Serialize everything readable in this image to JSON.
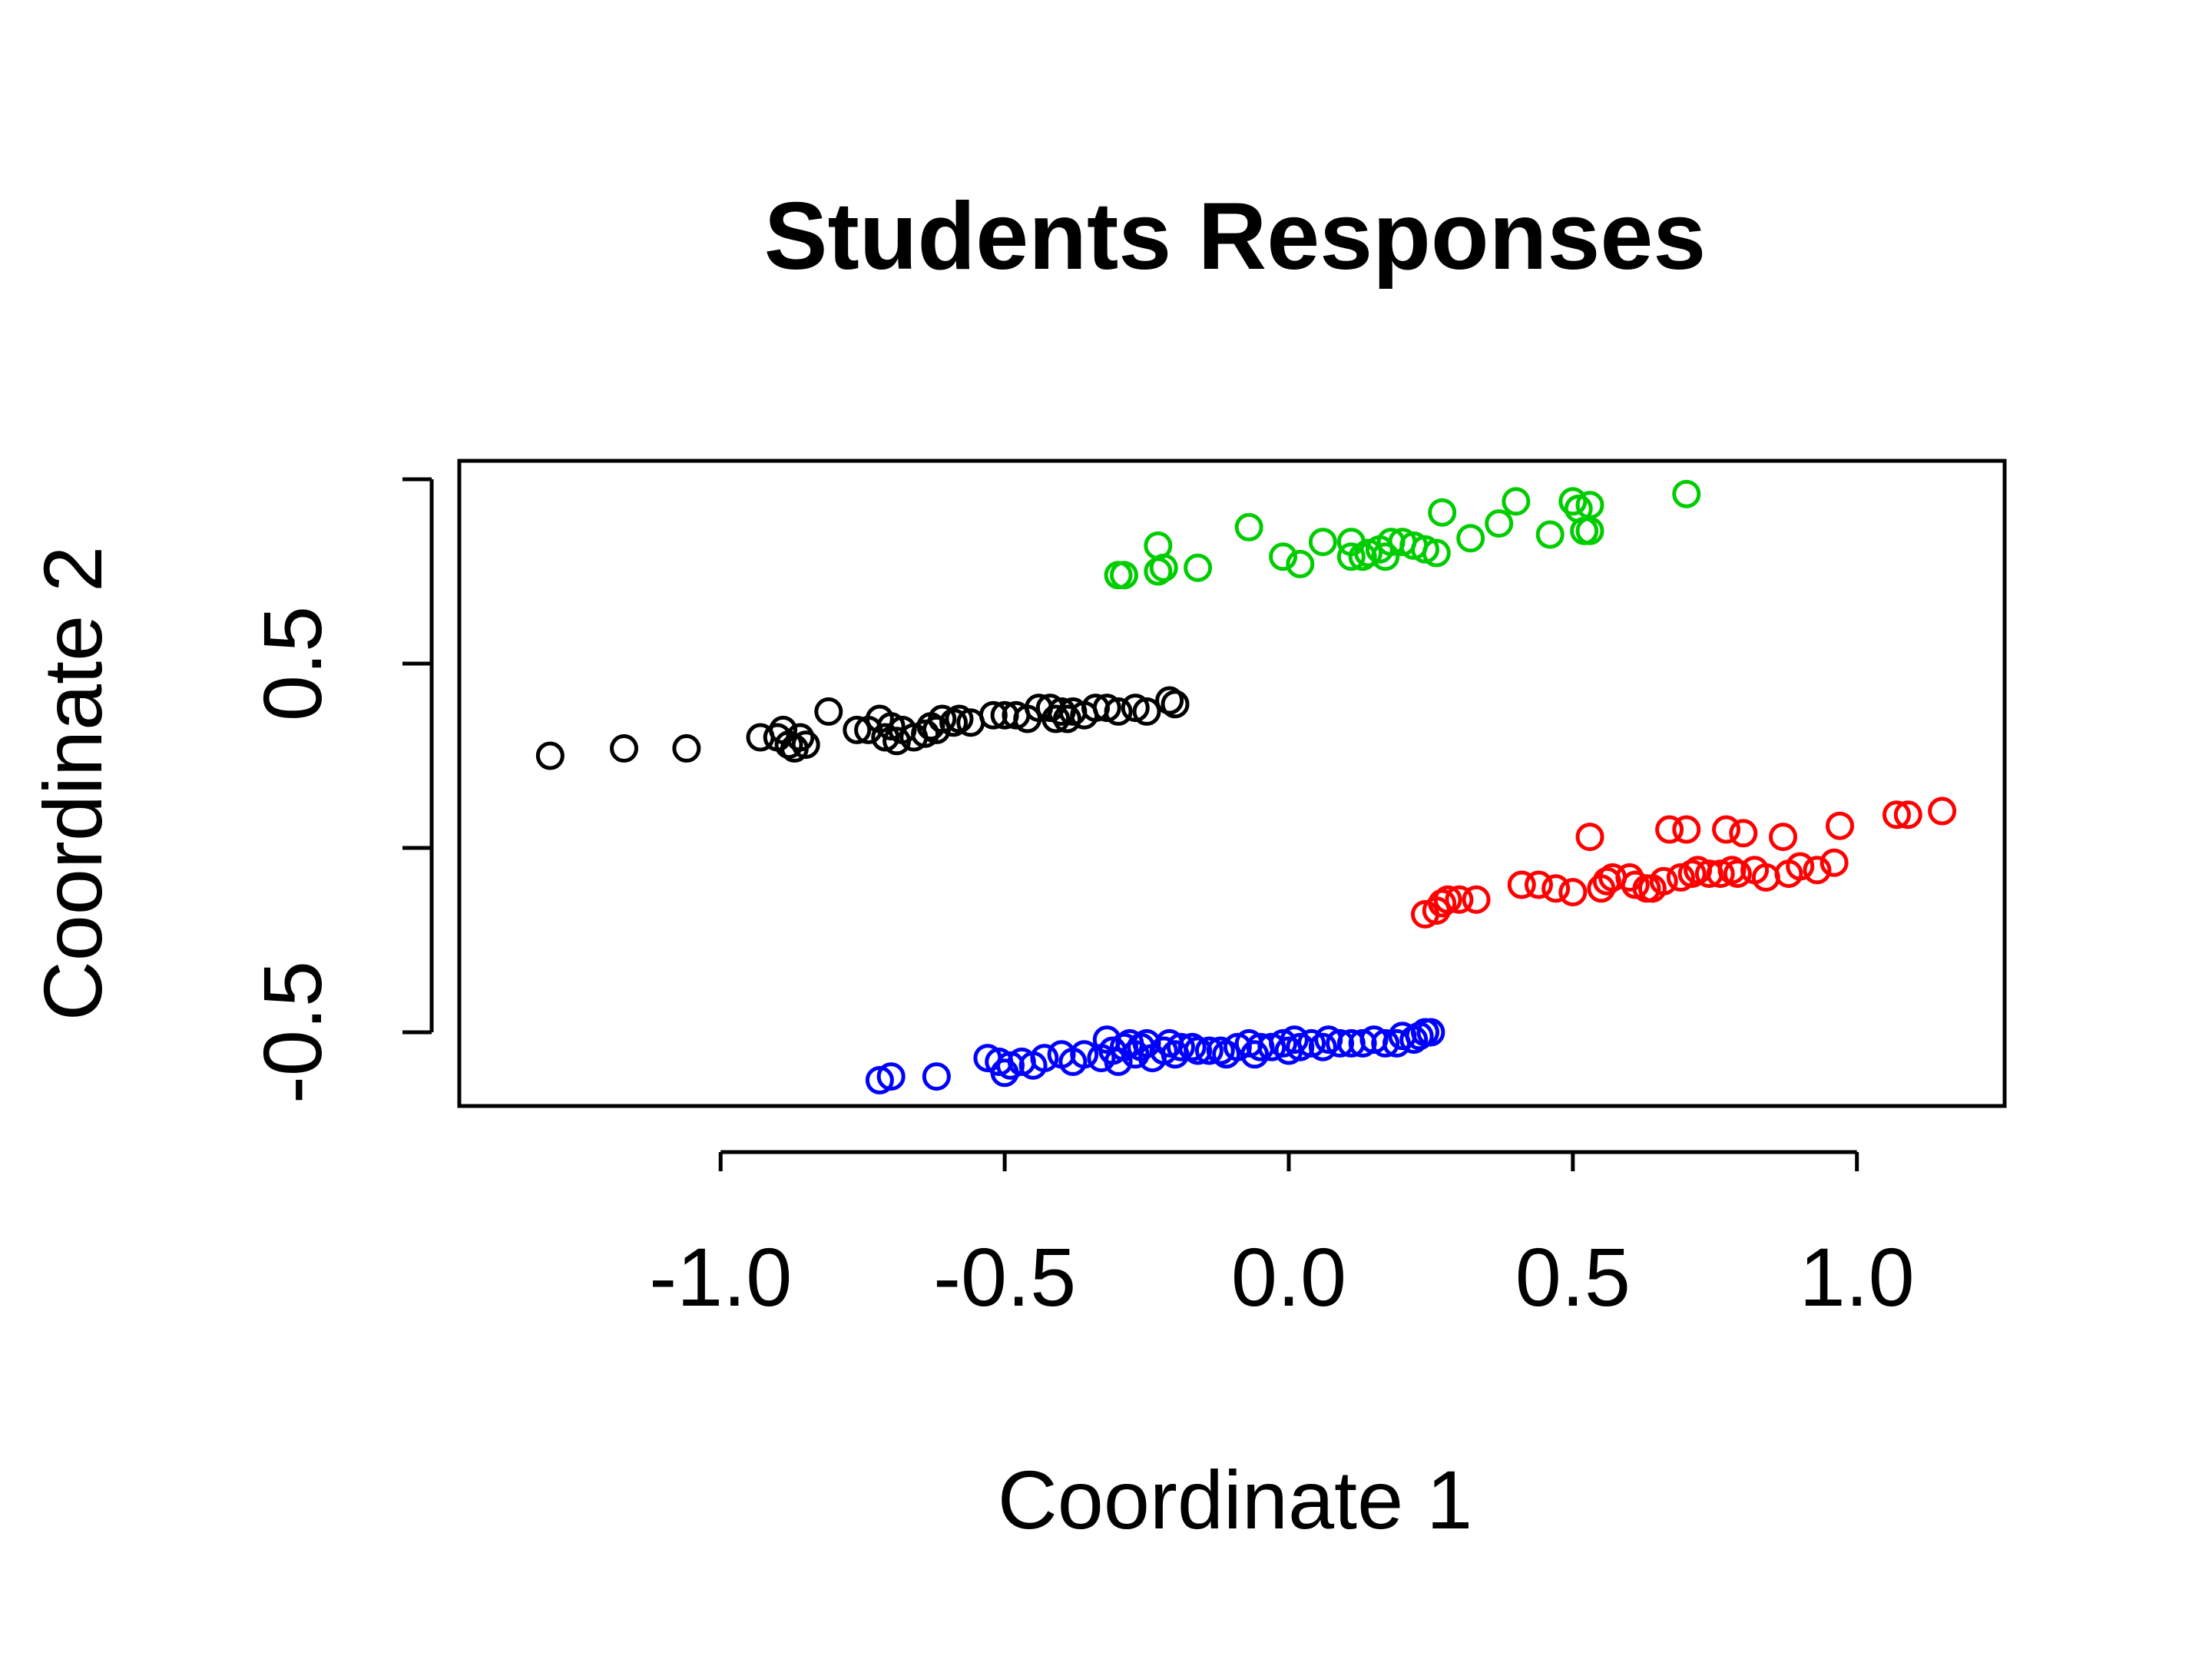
{
  "chart_data": {
    "type": "scatter",
    "title": "Students Responses",
    "xlabel": "Coordinate 1",
    "ylabel": "Coordinate 2",
    "xlim": [
      -1.46,
      1.26
    ],
    "ylim": [
      -0.7,
      1.05
    ],
    "xticks": [
      -1.0,
      -0.5,
      0.0,
      0.5,
      1.0
    ],
    "xtick_labels": [
      "-1.0",
      "-0.5",
      "0.0",
      "0.5",
      "1.0"
    ],
    "yticks": [
      -0.5,
      0.0,
      0.5,
      1.0
    ],
    "ytick_labels": [
      "-0.5",
      "",
      "0.5",
      ""
    ],
    "grid": false,
    "legend": "none",
    "marker": "open-circle",
    "series": [
      {
        "color": "#000000",
        "points": [
          [
            -1.3,
            0.25
          ],
          [
            -1.17,
            0.27
          ],
          [
            -1.06,
            0.27
          ],
          [
            -0.93,
            0.3
          ],
          [
            -0.9,
            0.3
          ],
          [
            -0.89,
            0.32
          ],
          [
            -0.88,
            0.28
          ],
          [
            -0.87,
            0.27
          ],
          [
            -0.86,
            0.3
          ],
          [
            -0.85,
            0.28
          ],
          [
            -0.81,
            0.37
          ],
          [
            -0.76,
            0.32
          ],
          [
            -0.74,
            0.32
          ],
          [
            -0.72,
            0.35
          ],
          [
            -0.71,
            0.3
          ],
          [
            -0.7,
            0.33
          ],
          [
            -0.69,
            0.29
          ],
          [
            -0.68,
            0.32
          ],
          [
            -0.66,
            0.3
          ],
          [
            -0.64,
            0.31
          ],
          [
            -0.63,
            0.33
          ],
          [
            -0.62,
            0.32
          ],
          [
            -0.61,
            0.35
          ],
          [
            -0.59,
            0.34
          ],
          [
            -0.58,
            0.35
          ],
          [
            -0.56,
            0.34
          ],
          [
            -0.52,
            0.36
          ],
          [
            -0.5,
            0.36
          ],
          [
            -0.48,
            0.36
          ],
          [
            -0.46,
            0.35
          ],
          [
            -0.44,
            0.38
          ],
          [
            -0.42,
            0.38
          ],
          [
            -0.41,
            0.35
          ],
          [
            -0.4,
            0.37
          ],
          [
            -0.39,
            0.35
          ],
          [
            -0.38,
            0.37
          ],
          [
            -0.36,
            0.36
          ],
          [
            -0.34,
            0.38
          ],
          [
            -0.32,
            0.38
          ],
          [
            -0.3,
            0.37
          ],
          [
            -0.27,
            0.38
          ],
          [
            -0.25,
            0.37
          ],
          [
            -0.21,
            0.4
          ],
          [
            -0.2,
            0.39
          ]
        ]
      },
      {
        "color": "#00cd00",
        "points": [
          [
            -0.3,
            0.74
          ],
          [
            -0.29,
            0.74
          ],
          [
            -0.23,
            0.82
          ],
          [
            -0.23,
            0.75
          ],
          [
            -0.22,
            0.76
          ],
          [
            -0.16,
            0.76
          ],
          [
            -0.07,
            0.87
          ],
          [
            -0.01,
            0.79
          ],
          [
            0.02,
            0.77
          ],
          [
            0.06,
            0.83
          ],
          [
            0.11,
            0.83
          ],
          [
            0.11,
            0.79
          ],
          [
            0.13,
            0.79
          ],
          [
            0.14,
            0.8
          ],
          [
            0.16,
            0.81
          ],
          [
            0.17,
            0.79
          ],
          [
            0.18,
            0.83
          ],
          [
            0.2,
            0.83
          ],
          [
            0.22,
            0.82
          ],
          [
            0.24,
            0.81
          ],
          [
            0.26,
            0.8
          ],
          [
            0.27,
            0.91
          ],
          [
            0.32,
            0.84
          ],
          [
            0.37,
            0.88
          ],
          [
            0.4,
            0.94
          ],
          [
            0.46,
            0.85
          ],
          [
            0.5,
            0.94
          ],
          [
            0.51,
            0.92
          ],
          [
            0.52,
            0.86
          ],
          [
            0.53,
            0.93
          ],
          [
            0.53,
            0.86
          ],
          [
            0.7,
            0.96
          ]
        ]
      },
      {
        "color": "#ff0000",
        "points": [
          [
            0.24,
            -0.18
          ],
          [
            0.26,
            -0.17
          ],
          [
            0.27,
            -0.15
          ],
          [
            0.28,
            -0.14
          ],
          [
            0.3,
            -0.14
          ],
          [
            0.33,
            -0.14
          ],
          [
            0.41,
            -0.1
          ],
          [
            0.44,
            -0.1
          ],
          [
            0.47,
            -0.11
          ],
          [
            0.5,
            -0.12
          ],
          [
            0.53,
            0.03
          ],
          [
            0.55,
            -0.11
          ],
          [
            0.56,
            -0.09
          ],
          [
            0.57,
            -0.08
          ],
          [
            0.6,
            -0.08
          ],
          [
            0.61,
            -0.1
          ],
          [
            0.63,
            -0.11
          ],
          [
            0.64,
            -0.11
          ],
          [
            0.66,
            -0.09
          ],
          [
            0.67,
            0.05
          ],
          [
            0.69,
            -0.08
          ],
          [
            0.7,
            0.05
          ],
          [
            0.71,
            -0.07
          ],
          [
            0.72,
            -0.06
          ],
          [
            0.74,
            -0.07
          ],
          [
            0.76,
            -0.07
          ],
          [
            0.77,
            0.05
          ],
          [
            0.78,
            -0.06
          ],
          [
            0.79,
            -0.07
          ],
          [
            0.8,
            0.04
          ],
          [
            0.82,
            -0.06
          ],
          [
            0.84,
            -0.08
          ],
          [
            0.87,
            0.03
          ],
          [
            0.88,
            -0.07
          ],
          [
            0.9,
            -0.05
          ],
          [
            0.93,
            -0.06
          ],
          [
            0.96,
            -0.04
          ],
          [
            0.97,
            0.06
          ],
          [
            1.07,
            0.09
          ],
          [
            1.09,
            0.09
          ],
          [
            1.15,
            0.1
          ]
        ]
      },
      {
        "color": "#0000ff",
        "points": [
          [
            -0.72,
            -0.63
          ],
          [
            -0.7,
            -0.62
          ],
          [
            -0.62,
            -0.62
          ],
          [
            -0.53,
            -0.57
          ],
          [
            -0.51,
            -0.58
          ],
          [
            -0.5,
            -0.61
          ],
          [
            -0.49,
            -0.59
          ],
          [
            -0.47,
            -0.58
          ],
          [
            -0.45,
            -0.59
          ],
          [
            -0.43,
            -0.57
          ],
          [
            -0.4,
            -0.56
          ],
          [
            -0.38,
            -0.58
          ],
          [
            -0.36,
            -0.56
          ],
          [
            -0.33,
            -0.57
          ],
          [
            -0.32,
            -0.52
          ],
          [
            -0.31,
            -0.55
          ],
          [
            -0.3,
            -0.58
          ],
          [
            -0.29,
            -0.54
          ],
          [
            -0.28,
            -0.53
          ],
          [
            -0.27,
            -0.56
          ],
          [
            -0.26,
            -0.54
          ],
          [
            -0.25,
            -0.53
          ],
          [
            -0.24,
            -0.57
          ],
          [
            -0.22,
            -0.55
          ],
          [
            -0.21,
            -0.53
          ],
          [
            -0.2,
            -0.56
          ],
          [
            -0.19,
            -0.54
          ],
          [
            -0.17,
            -0.54
          ],
          [
            -0.16,
            -0.55
          ],
          [
            -0.14,
            -0.55
          ],
          [
            -0.12,
            -0.55
          ],
          [
            -0.11,
            -0.56
          ],
          [
            -0.09,
            -0.54
          ],
          [
            -0.07,
            -0.53
          ],
          [
            -0.06,
            -0.56
          ],
          [
            -0.05,
            -0.54
          ],
          [
            -0.03,
            -0.54
          ],
          [
            -0.01,
            -0.53
          ],
          [
            0.0,
            -0.55
          ],
          [
            0.01,
            -0.52
          ],
          [
            0.02,
            -0.54
          ],
          [
            0.04,
            -0.53
          ],
          [
            0.06,
            -0.54
          ],
          [
            0.07,
            -0.52
          ],
          [
            0.09,
            -0.53
          ],
          [
            0.11,
            -0.53
          ],
          [
            0.13,
            -0.53
          ],
          [
            0.15,
            -0.52
          ],
          [
            0.17,
            -0.53
          ],
          [
            0.19,
            -0.53
          ],
          [
            0.2,
            -0.51
          ],
          [
            0.22,
            -0.52
          ],
          [
            0.23,
            -0.51
          ],
          [
            0.24,
            -0.5
          ],
          [
            0.25,
            -0.5
          ]
        ]
      }
    ]
  }
}
